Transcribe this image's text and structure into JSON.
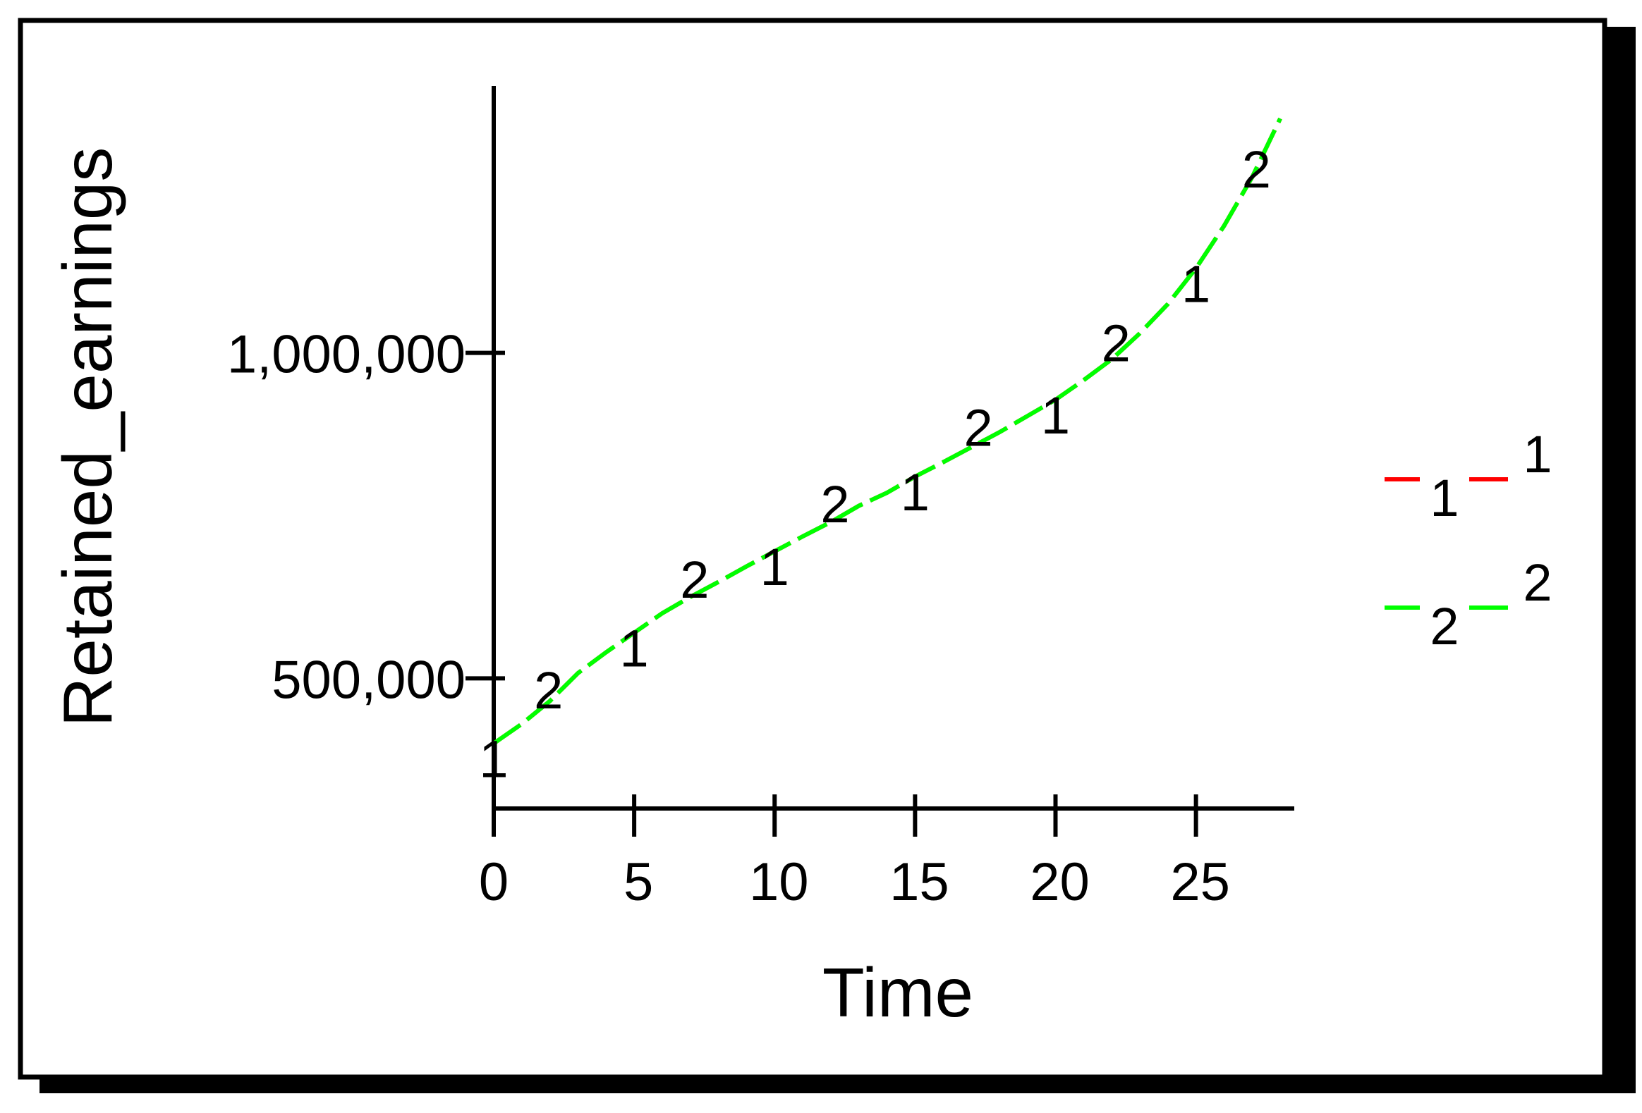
{
  "chart_data": {
    "type": "line",
    "title": "",
    "xlabel": "Time",
    "ylabel": "Retained_earnings",
    "xlim": [
      0,
      28.5
    ],
    "ylim": [
      300000,
      1410000
    ],
    "x_ticks": [
      {
        "value": 0,
        "label": "0"
      },
      {
        "value": 5,
        "label": "5"
      },
      {
        "value": 10,
        "label": "10"
      },
      {
        "value": 15,
        "label": "15"
      },
      {
        "value": 20,
        "label": "20"
      },
      {
        "value": 25,
        "label": "25"
      }
    ],
    "y_ticks": [
      {
        "value": 500000,
        "label": "500,000"
      },
      {
        "value": 1000000,
        "label": "1,000,000"
      }
    ],
    "grid": false,
    "legend_position": "right",
    "series": [
      {
        "name": "1",
        "color": "#ff0000",
        "marker": "1",
        "dash": "dashed",
        "x": [
          0,
          1,
          2,
          3,
          4,
          5,
          6,
          7,
          8,
          9,
          10,
          11,
          12,
          13,
          14,
          15,
          16,
          17,
          18,
          19,
          20,
          21,
          22,
          23,
          24,
          25,
          26,
          27,
          28
        ],
        "values": [
          400000,
          430000,
          465000,
          508000,
          540000,
          570000,
          600000,
          625000,
          648000,
          672000,
          695000,
          718000,
          740000,
          765000,
          785000,
          810000,
          832000,
          855000,
          878000,
          903000,
          928000,
          958000,
          990000,
          1030000,
          1075000,
          1130000,
          1195000,
          1270000,
          1360000
        ]
      },
      {
        "name": "2",
        "color": "#00ff00",
        "marker": "2",
        "dash": "dashed",
        "x": [
          0,
          1,
          2,
          3,
          4,
          5,
          6,
          7,
          8,
          9,
          10,
          11,
          12,
          13,
          14,
          15,
          16,
          17,
          18,
          19,
          20,
          21,
          22,
          23,
          24,
          25,
          26,
          27,
          28
        ],
        "values": [
          400000,
          430000,
          465000,
          508000,
          540000,
          570000,
          600000,
          625000,
          648000,
          672000,
          695000,
          718000,
          740000,
          765000,
          785000,
          810000,
          832000,
          855000,
          878000,
          903000,
          928000,
          958000,
          990000,
          1030000,
          1075000,
          1130000,
          1195000,
          1270000,
          1360000
        ]
      }
    ],
    "series_markers": [
      {
        "series": 0,
        "label": "1",
        "x": [
          0,
          5,
          10,
          15,
          20,
          25
        ]
      },
      {
        "series": 1,
        "label": "2",
        "x": [
          1.5,
          6.7,
          11.7,
          16.8,
          21.7,
          26.7
        ]
      }
    ],
    "legend": [
      {
        "series": 0,
        "marker": "1",
        "label": "1"
      },
      {
        "series": 1,
        "marker": "2",
        "label": "2"
      }
    ]
  }
}
